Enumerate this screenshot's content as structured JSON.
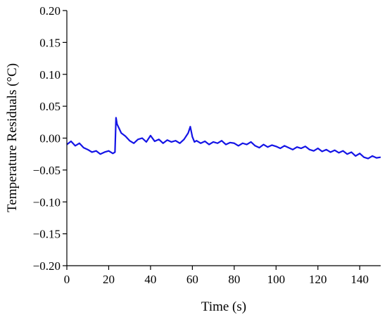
{
  "chart_data": {
    "type": "line",
    "title": "",
    "xlabel": "Time (s)",
    "ylabel": "Temperature Residuals (°C)",
    "xlim": [
      0,
      150
    ],
    "ylim": [
      -0.2,
      0.2
    ],
    "grid": false,
    "legend": "none",
    "x_ticks": [
      0,
      20,
      40,
      60,
      80,
      100,
      120,
      140
    ],
    "x_tick_labels": [
      "0",
      "20",
      "40",
      "60",
      "80",
      "100",
      "120",
      "140"
    ],
    "y_ticks": [
      0.2,
      0.15,
      0.1,
      0.05,
      0.0,
      -0.05,
      -0.1,
      -0.15,
      -0.2
    ],
    "y_tick_labels": [
      "0.20",
      "0.15",
      "0.10",
      "0.05",
      "0.00",
      "−0.05",
      "−0.10",
      "−0.15",
      "−0.20"
    ],
    "series": [
      {
        "color": "#1414e6",
        "x": [
          0,
          2,
          4,
          6,
          8,
          10,
          12,
          14,
          16,
          18,
          20,
          22,
          23,
          23.5,
          24,
          25,
          26,
          28,
          30,
          32,
          34,
          36,
          38,
          40,
          42,
          44,
          46,
          48,
          50,
          52,
          54,
          56,
          58,
          59,
          60,
          61,
          62,
          64,
          66,
          68,
          70,
          72,
          74,
          76,
          78,
          80,
          82,
          84,
          86,
          88,
          90,
          92,
          94,
          96,
          98,
          100,
          102,
          104,
          106,
          108,
          110,
          112,
          114,
          116,
          118,
          120,
          122,
          124,
          126,
          128,
          130,
          132,
          134,
          136,
          138,
          140,
          142,
          144,
          146,
          148,
          150
        ],
        "values": [
          -0.01,
          -0.005,
          -0.012,
          -0.008,
          -0.015,
          -0.018,
          -0.022,
          -0.02,
          -0.025,
          -0.022,
          -0.02,
          -0.024,
          -0.022,
          0.032,
          0.022,
          0.015,
          0.008,
          0.003,
          -0.004,
          -0.008,
          -0.002,
          0.0,
          -0.006,
          0.004,
          -0.005,
          -0.002,
          -0.008,
          -0.003,
          -0.006,
          -0.004,
          -0.008,
          -0.002,
          0.008,
          0.018,
          0.002,
          -0.006,
          -0.004,
          -0.008,
          -0.005,
          -0.01,
          -0.006,
          -0.008,
          -0.004,
          -0.01,
          -0.007,
          -0.008,
          -0.012,
          -0.008,
          -0.01,
          -0.006,
          -0.012,
          -0.015,
          -0.01,
          -0.014,
          -0.011,
          -0.013,
          -0.016,
          -0.012,
          -0.015,
          -0.018,
          -0.014,
          -0.016,
          -0.013,
          -0.018,
          -0.02,
          -0.016,
          -0.021,
          -0.018,
          -0.022,
          -0.019,
          -0.023,
          -0.02,
          -0.025,
          -0.022,
          -0.028,
          -0.024,
          -0.03,
          -0.032,
          -0.028,
          -0.031,
          -0.03
        ]
      }
    ]
  }
}
